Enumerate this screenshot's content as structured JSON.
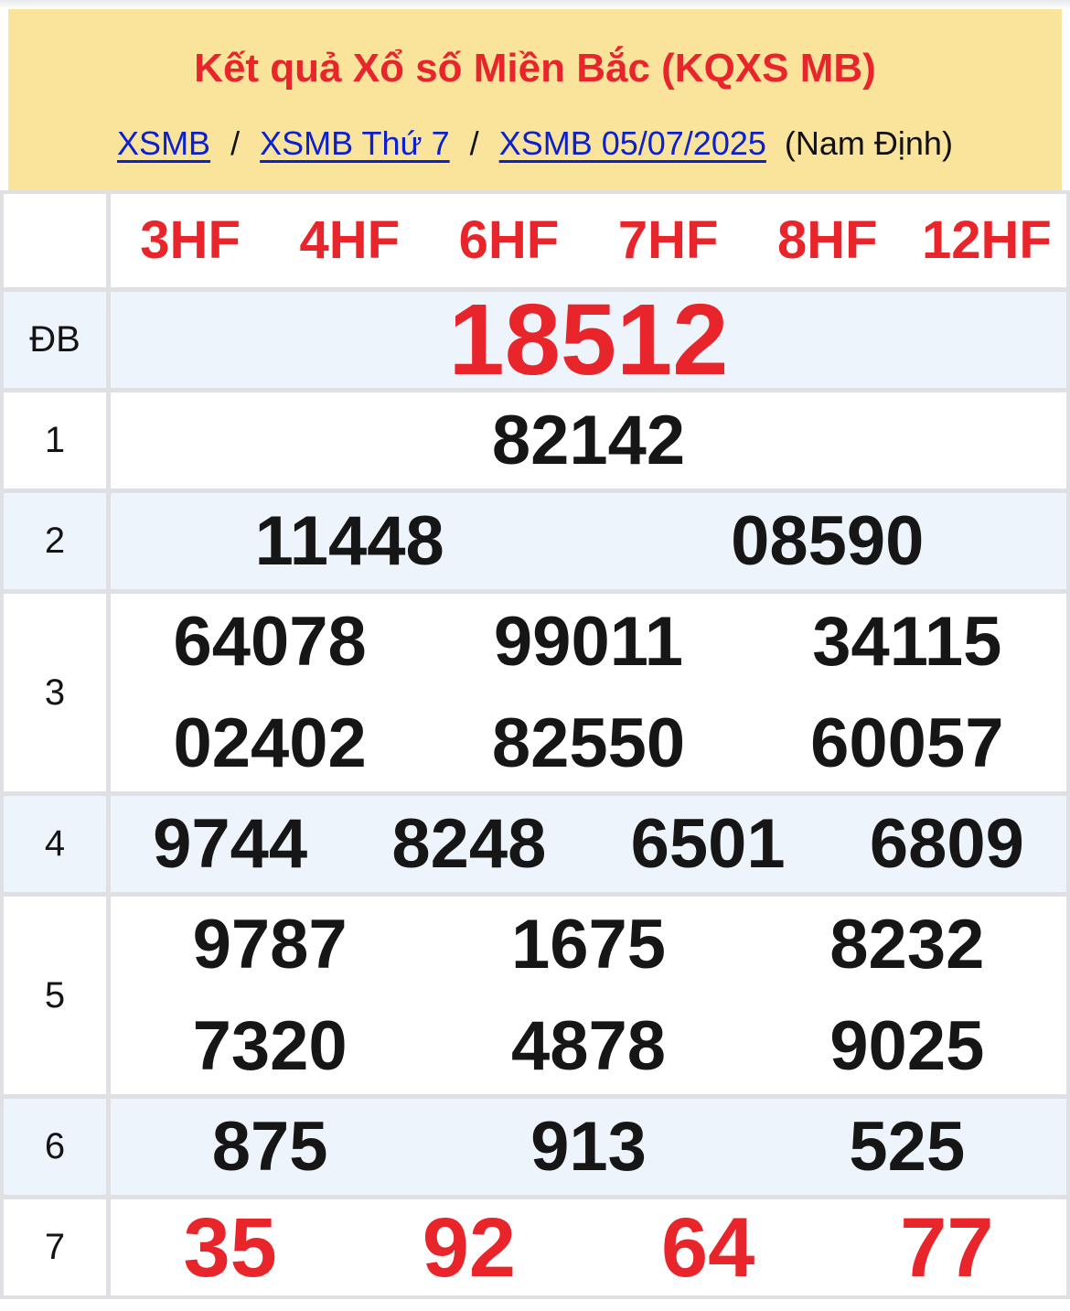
{
  "header": {
    "title": "Kết quả Xổ số Miền Bắc (KQXS MB)",
    "breadcrumb": [
      {
        "label": "XSMB"
      },
      {
        "label": "XSMB Thứ 7"
      },
      {
        "label": "XSMB 05/07/2025"
      }
    ],
    "separator": "/",
    "region": "(Nam Định)"
  },
  "table": {
    "column_headers": [
      "3HF",
      "4HF",
      "6HF",
      "7HF",
      "8HF",
      "12HF"
    ],
    "rows": [
      {
        "label": "ĐB",
        "style": "special",
        "lines": [
          [
            "18512"
          ]
        ]
      },
      {
        "label": "1",
        "style": "normal",
        "lines": [
          [
            "82142"
          ]
        ]
      },
      {
        "label": "2",
        "style": "normal",
        "lines": [
          [
            "11448",
            "08590"
          ]
        ]
      },
      {
        "label": "3",
        "style": "normal",
        "lines": [
          [
            "64078",
            "99011",
            "34115"
          ],
          [
            "02402",
            "82550",
            "60057"
          ]
        ]
      },
      {
        "label": "4",
        "style": "normal",
        "lines": [
          [
            "9744",
            "8248",
            "6501",
            "6809"
          ]
        ]
      },
      {
        "label": "5",
        "style": "normal",
        "lines": [
          [
            "9787",
            "1675",
            "8232"
          ],
          [
            "7320",
            "4878",
            "9025"
          ]
        ]
      },
      {
        "label": "6",
        "style": "normal",
        "lines": [
          [
            "875",
            "913",
            "525"
          ]
        ]
      },
      {
        "label": "7",
        "style": "red",
        "lines": [
          [
            "35",
            "92",
            "64",
            "77"
          ]
        ]
      }
    ]
  },
  "colors": {
    "accent_red": "#e8252b",
    "link_blue": "#0b20d0",
    "header_yellow": "#fae49c",
    "row_stripe_blue": "#edf4fb",
    "table_border": "#dee0e4",
    "number_black": "#161616"
  }
}
